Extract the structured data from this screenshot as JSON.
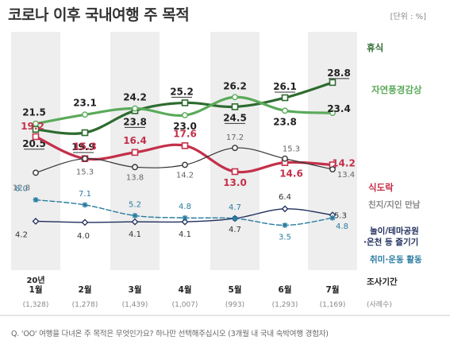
{
  "title": "코로나 이후 국내여행 주 목적",
  "unit": "[단위 : %]",
  "question": "Q. 'OO' 여행을 다녀온 주 목적은 무엇인가요? 하나만 선택해주십시오 (3개월 내 국내 숙박여행 경험자)",
  "colors": {
    "line_dark": "#2e6b30",
    "line_light": "#5aaa5a",
    "line_red": "#c4304a",
    "line_gray": "#333333",
    "line_navy": "#1f2d5c",
    "line_teal": "#2a7ca0",
    "band": "#eeeeee"
  },
  "chart_data": {
    "type": "line",
    "year_label": "20년",
    "categories": [
      "1월",
      "2월",
      "3월",
      "4월",
      "5월",
      "6월",
      "7월"
    ],
    "sample_sizes": [
      "(1,328)",
      "(1,278)",
      "(1,439)",
      "(1,007)",
      "(993)",
      "(1,293)",
      "(1,169)"
    ],
    "period_label": "조사기간",
    "sample_label": "(사례수)",
    "series": [
      {
        "name": "휴식",
        "values": [
          20.5,
          19.9,
          23.8,
          25.2,
          24.5,
          26.1,
          28.8
        ]
      },
      {
        "name": "자연풍경감상",
        "values": [
          21.5,
          23.1,
          24.2,
          23.0,
          26.2,
          23.8,
          23.4
        ]
      },
      {
        "name": "식도락",
        "values": [
          19.2,
          15.3,
          16.4,
          17.6,
          13.0,
          14.6,
          14.2
        ]
      },
      {
        "name": "친지/지인 만남",
        "values": [
          12.8,
          15.3,
          13.8,
          14.2,
          17.2,
          15.3,
          13.4
        ]
      },
      {
        "name": "놀이/테마공원·온천 등 즐기기",
        "values": [
          4.2,
          4.0,
          4.1,
          4.1,
          4.7,
          6.4,
          5.3
        ]
      },
      {
        "name": "취미·운동 활동",
        "values": [
          8.0,
          7.1,
          5.2,
          4.8,
          4.7,
          3.5,
          4.8
        ]
      }
    ]
  }
}
